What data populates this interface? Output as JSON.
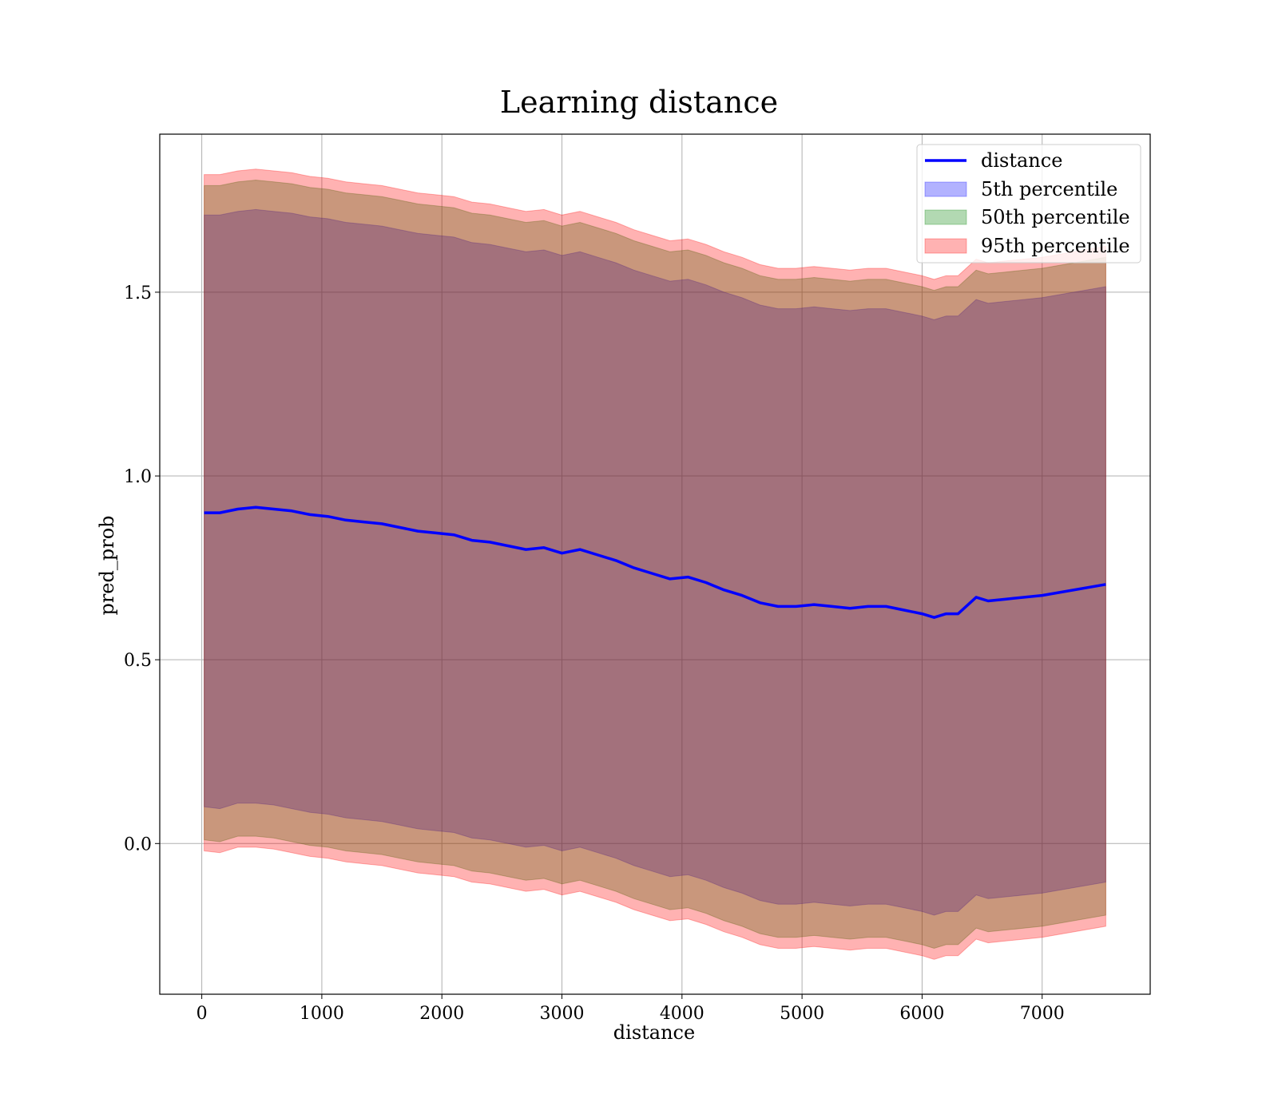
{
  "chart_data": {
    "type": "line",
    "title": "Learning distance",
    "xlabel": "distance",
    "ylabel": "pred_prob",
    "xlim": [
      -350,
      7900
    ],
    "ylim": [
      -0.41,
      1.93
    ],
    "xticks": [
      0,
      1000,
      2000,
      3000,
      4000,
      5000,
      6000,
      7000
    ],
    "xtick_labels": [
      "0",
      "1000",
      "2000",
      "3000",
      "4000",
      "5000",
      "6000",
      "7000"
    ],
    "yticks": [
      0.0,
      0.5,
      1.0,
      1.5
    ],
    "ytick_labels": [
      "0.0",
      "0.5",
      "1.0",
      "1.5"
    ],
    "grid": true,
    "legend_position": "top-right",
    "colors": {
      "line": "#0000ff",
      "band_5th": "#0000ff",
      "band_50th": "#008000",
      "band_95th": "#ff0000"
    },
    "x": [
      20,
      150,
      300,
      450,
      600,
      750,
      900,
      1050,
      1200,
      1350,
      1500,
      1650,
      1800,
      1950,
      2100,
      2250,
      2400,
      2550,
      2700,
      2850,
      3000,
      3150,
      3300,
      3450,
      3600,
      3750,
      3900,
      4050,
      4200,
      4350,
      4500,
      4650,
      4800,
      4950,
      5100,
      5250,
      5400,
      5550,
      5700,
      5850,
      6000,
      6100,
      6200,
      6300,
      6450,
      6550,
      6700,
      7000,
      7530
    ],
    "line": {
      "name": "distance",
      "values": [
        0.9,
        0.9,
        0.91,
        0.915,
        0.91,
        0.905,
        0.895,
        0.89,
        0.88,
        0.875,
        0.87,
        0.86,
        0.85,
        0.845,
        0.84,
        0.825,
        0.82,
        0.81,
        0.8,
        0.805,
        0.79,
        0.8,
        0.785,
        0.77,
        0.75,
        0.735,
        0.72,
        0.725,
        0.71,
        0.69,
        0.675,
        0.655,
        0.645,
        0.645,
        0.65,
        0.645,
        0.64,
        0.645,
        0.645,
        0.635,
        0.625,
        0.615,
        0.625,
        0.625,
        0.67,
        0.66,
        0.665,
        0.675,
        0.705
      ]
    },
    "series": [
      {
        "name": "5th percentile",
        "lower": [
          0.1,
          0.095,
          0.11,
          0.11,
          0.105,
          0.095,
          0.085,
          0.08,
          0.07,
          0.065,
          0.06,
          0.05,
          0.04,
          0.035,
          0.03,
          0.015,
          0.01,
          0.0,
          -0.01,
          -0.005,
          -0.02,
          -0.01,
          -0.025,
          -0.04,
          -0.06,
          -0.075,
          -0.09,
          -0.085,
          -0.1,
          -0.12,
          -0.135,
          -0.155,
          -0.165,
          -0.165,
          -0.16,
          -0.165,
          -0.17,
          -0.165,
          -0.165,
          -0.175,
          -0.185,
          -0.195,
          -0.185,
          -0.185,
          -0.14,
          -0.15,
          -0.145,
          -0.135,
          -0.105
        ],
        "upper": [
          1.71,
          1.71,
          1.72,
          1.725,
          1.72,
          1.715,
          1.705,
          1.7,
          1.69,
          1.685,
          1.68,
          1.67,
          1.66,
          1.655,
          1.65,
          1.635,
          1.63,
          1.62,
          1.61,
          1.615,
          1.6,
          1.61,
          1.595,
          1.58,
          1.56,
          1.545,
          1.53,
          1.535,
          1.52,
          1.5,
          1.485,
          1.465,
          1.455,
          1.455,
          1.46,
          1.455,
          1.45,
          1.455,
          1.455,
          1.445,
          1.435,
          1.425,
          1.435,
          1.435,
          1.48,
          1.47,
          1.475,
          1.485,
          1.515
        ]
      },
      {
        "name": "50th percentile",
        "lower": [
          0.01,
          0.005,
          0.02,
          0.02,
          0.015,
          0.005,
          -0.005,
          -0.01,
          -0.02,
          -0.025,
          -0.03,
          -0.04,
          -0.05,
          -0.055,
          -0.06,
          -0.075,
          -0.08,
          -0.09,
          -0.1,
          -0.095,
          -0.11,
          -0.1,
          -0.115,
          -0.13,
          -0.15,
          -0.165,
          -0.18,
          -0.175,
          -0.19,
          -0.21,
          -0.225,
          -0.245,
          -0.255,
          -0.255,
          -0.25,
          -0.255,
          -0.26,
          -0.255,
          -0.255,
          -0.265,
          -0.275,
          -0.285,
          -0.275,
          -0.275,
          -0.23,
          -0.24,
          -0.235,
          -0.225,
          -0.195
        ],
        "upper": [
          1.79,
          1.79,
          1.8,
          1.805,
          1.8,
          1.795,
          1.785,
          1.78,
          1.77,
          1.765,
          1.76,
          1.75,
          1.74,
          1.735,
          1.73,
          1.715,
          1.71,
          1.7,
          1.69,
          1.695,
          1.68,
          1.69,
          1.675,
          1.66,
          1.64,
          1.625,
          1.61,
          1.615,
          1.6,
          1.58,
          1.565,
          1.545,
          1.535,
          1.535,
          1.54,
          1.535,
          1.53,
          1.535,
          1.535,
          1.525,
          1.515,
          1.505,
          1.515,
          1.515,
          1.56,
          1.55,
          1.555,
          1.565,
          1.595
        ]
      },
      {
        "name": "95th percentile",
        "lower": [
          -0.02,
          -0.025,
          -0.01,
          -0.01,
          -0.015,
          -0.025,
          -0.035,
          -0.04,
          -0.05,
          -0.055,
          -0.06,
          -0.07,
          -0.08,
          -0.085,
          -0.09,
          -0.105,
          -0.11,
          -0.12,
          -0.13,
          -0.125,
          -0.14,
          -0.13,
          -0.145,
          -0.16,
          -0.18,
          -0.195,
          -0.21,
          -0.205,
          -0.22,
          -0.24,
          -0.255,
          -0.275,
          -0.285,
          -0.285,
          -0.28,
          -0.285,
          -0.29,
          -0.285,
          -0.285,
          -0.295,
          -0.305,
          -0.315,
          -0.305,
          -0.305,
          -0.26,
          -0.27,
          -0.265,
          -0.255,
          -0.225
        ],
        "upper": [
          1.82,
          1.82,
          1.83,
          1.835,
          1.83,
          1.825,
          1.815,
          1.81,
          1.8,
          1.795,
          1.79,
          1.78,
          1.77,
          1.765,
          1.76,
          1.745,
          1.74,
          1.73,
          1.72,
          1.725,
          1.71,
          1.72,
          1.705,
          1.69,
          1.67,
          1.655,
          1.64,
          1.645,
          1.63,
          1.61,
          1.595,
          1.575,
          1.565,
          1.565,
          1.57,
          1.565,
          1.56,
          1.565,
          1.565,
          1.555,
          1.545,
          1.535,
          1.545,
          1.545,
          1.59,
          1.58,
          1.585,
          1.595,
          1.625
        ]
      }
    ]
  }
}
